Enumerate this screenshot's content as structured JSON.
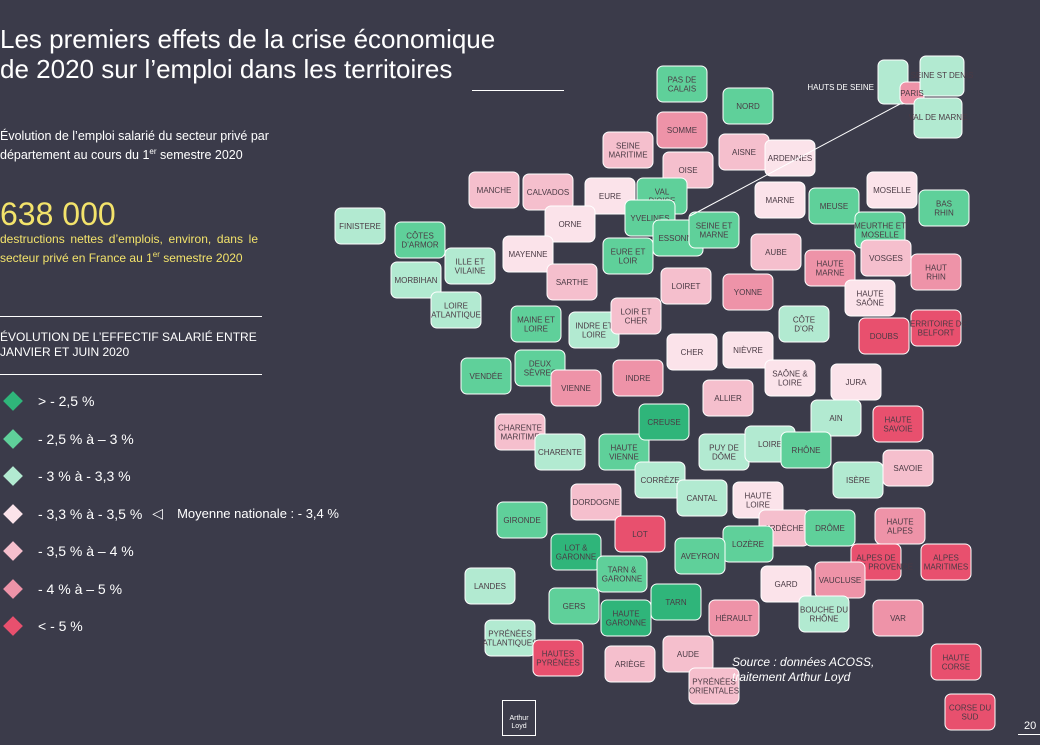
{
  "title": {
    "line1": "Les premiers effets de la crise économique",
    "line2": "de 2020 sur l’emploi dans les territoires"
  },
  "subtitle": {
    "text": "Évolution de l’emploi salarié du secteur privé par département au cours du 1",
    "sup": "er",
    "end": " semestre 2020"
  },
  "headline": {
    "value": "638 000",
    "desc": "destructions nettes d’emplois, environ, dans le secteur privé en France au 1",
    "sup": "er",
    "end": " semestre 2020"
  },
  "legend": {
    "title": "ÉVOLUTION DE L’EFFECTIF SALARIÉ ENTRE JANVIER ET JUIN 2020",
    "items": [
      {
        "label": "> - 2,5 %",
        "color": "#2fb57a"
      },
      {
        "label": "- 2,5 % à – 3 %",
        "color": "#5fd09a"
      },
      {
        "label": "- 3 % à - 3,3 %",
        "color": "#b2ead1"
      },
      {
        "label": "- 3,3 % à - 3,5 %",
        "color": "#fbe3ea"
      },
      {
        "label": "- 3,5 % à – 4 %",
        "color": "#f5bfcd"
      },
      {
        "label": "- 4 % à – 5 %",
        "color": "#ee93a8"
      },
      {
        "label": "< - 5 %",
        "color": "#e8506e"
      }
    ],
    "marker": "◁",
    "national_average": "Moyenne nationale : - 3,4 %"
  },
  "map_labels": [
    {
      "name": "PAS DE CALAIS",
      "cls": 1
    },
    {
      "name": "NORD",
      "cls": 1
    },
    {
      "name": "SOMME",
      "cls": 5
    },
    {
      "name": "SEINE MARITIME",
      "cls": 4
    },
    {
      "name": "AISNE",
      "cls": 4
    },
    {
      "name": "ARDENNES",
      "cls": 3
    },
    {
      "name": "OISE",
      "cls": 4
    },
    {
      "name": "MANCHE",
      "cls": 4
    },
    {
      "name": "CALVADOS",
      "cls": 4
    },
    {
      "name": "EURE",
      "cls": 3
    },
    {
      "name": "VAL D’OISE",
      "cls": 1
    },
    {
      "name": "YVELINES",
      "cls": 1
    },
    {
      "name": "ESSONNE",
      "cls": 1
    },
    {
      "name": "SEINE ET MARNE",
      "cls": 1
    },
    {
      "name": "MARNE",
      "cls": 3
    },
    {
      "name": "MEUSE",
      "cls": 1
    },
    {
      "name": "MOSELLE",
      "cls": 3
    },
    {
      "name": "BAS RHIN",
      "cls": 1
    },
    {
      "name": "MEURTHE ET MOSELLE",
      "cls": 1
    },
    {
      "name": "FINISTERE",
      "cls": 2
    },
    {
      "name": "CÔTES D’ARMOR",
      "cls": 1
    },
    {
      "name": "ORNE",
      "cls": 3
    },
    {
      "name": "EURE ET LOIR",
      "cls": 1
    },
    {
      "name": "AUBE",
      "cls": 4
    },
    {
      "name": "HAUTE MARNE",
      "cls": 5
    },
    {
      "name": "VOSGES",
      "cls": 4
    },
    {
      "name": "HAUT RHIN",
      "cls": 5
    },
    {
      "name": "MORBIHAN",
      "cls": 2
    },
    {
      "name": "ILLE ET VILAINE",
      "cls": 2
    },
    {
      "name": "MAYENNE",
      "cls": 3
    },
    {
      "name": "SARTHE",
      "cls": 4
    },
    {
      "name": "LOIRET",
      "cls": 4
    },
    {
      "name": "YONNE",
      "cls": 5
    },
    {
      "name": "HAUTE SAÔNE",
      "cls": 3
    },
    {
      "name": "TERRITOIRE DE BELFORT",
      "cls": 6
    },
    {
      "name": "LOIRE ATLANTIQUE",
      "cls": 2
    },
    {
      "name": "MAINE ET LOIRE",
      "cls": 1
    },
    {
      "name": "INDRE ET LOIRE",
      "cls": 2
    },
    {
      "name": "LOIR ET CHER",
      "cls": 4
    },
    {
      "name": "CÔTE D’OR",
      "cls": 2
    },
    {
      "name": "DOUBS",
      "cls": 6
    },
    {
      "name": "CHER",
      "cls": 3
    },
    {
      "name": "NIÈVRE",
      "cls": 3
    },
    {
      "name": "VENDÉE",
      "cls": 1
    },
    {
      "name": "DEUX SÈVRES",
      "cls": 1
    },
    {
      "name": "VIENNE",
      "cls": 5
    },
    {
      "name": "INDRE",
      "cls": 5
    },
    {
      "name": "SAÔNE & LOIRE",
      "cls": 3
    },
    {
      "name": "JURA",
      "cls": 3
    },
    {
      "name": "ALLIER",
      "cls": 4
    },
    {
      "name": "AIN",
      "cls": 2
    },
    {
      "name": "HAUTE SAVOIE",
      "cls": 6
    },
    {
      "name": "CHARENTE MARITIME",
      "cls": 4
    },
    {
      "name": "CHARENTE",
      "cls": 2
    },
    {
      "name": "HAUTE VIENNE",
      "cls": 1
    },
    {
      "name": "CREUSE",
      "cls": 0
    },
    {
      "name": "PUY DE DÔME",
      "cls": 2
    },
    {
      "name": "LOIRE",
      "cls": 2
    },
    {
      "name": "RHÔNE",
      "cls": 1
    },
    {
      "name": "SAVOIE",
      "cls": 4
    },
    {
      "name": "ISÈRE",
      "cls": 2
    },
    {
      "name": "CORRÈZE",
      "cls": 2
    },
    {
      "name": "CANTAL",
      "cls": 2
    },
    {
      "name": "HAUTE LOIRE",
      "cls": 3
    },
    {
      "name": "DORDOGNE",
      "cls": 4
    },
    {
      "name": "HAUTE ALPES",
      "cls": 5
    },
    {
      "name": "GIRONDE",
      "cls": 1
    },
    {
      "name": "LOT",
      "cls": 6
    },
    {
      "name": "ARDÈCHE",
      "cls": 4
    },
    {
      "name": "DRÔME",
      "cls": 1
    },
    {
      "name": "LOZÈRE",
      "cls": 1
    },
    {
      "name": "LOT & GARONNE",
      "cls": 0
    },
    {
      "name": "AVEYRON",
      "cls": 1
    },
    {
      "name": "ALPES DE HAUTE PROVENCE",
      "cls": 6
    },
    {
      "name": "ALPES MARITIMES",
      "cls": 6
    },
    {
      "name": "TARN & GARONNE",
      "cls": 1
    },
    {
      "name": "LANDES",
      "cls": 2
    },
    {
      "name": "GARD",
      "cls": 3
    },
    {
      "name": "VAUCLUSE",
      "cls": 5
    },
    {
      "name": "TARN",
      "cls": 0
    },
    {
      "name": "GERS",
      "cls": 1
    },
    {
      "name": "HAUTE GARONNE",
      "cls": 0
    },
    {
      "name": "HÉRAULT",
      "cls": 5
    },
    {
      "name": "BOUCHE DU RHÔNE",
      "cls": 2
    },
    {
      "name": "VAR",
      "cls": 5
    },
    {
      "name": "PYRÉNÉES ATLANTIQUES",
      "cls": 2
    },
    {
      "name": "HAUTES PYRÉNÉES",
      "cls": 6
    },
    {
      "name": "ARIÈGE",
      "cls": 4
    },
    {
      "name": "AUDE",
      "cls": 4
    },
    {
      "name": "PYRÉNÉES ORIENTALES",
      "cls": 4
    },
    {
      "name": "HAUTE CORSE",
      "cls": 6
    },
    {
      "name": "CORSE DU SUD",
      "cls": 6
    }
  ],
  "idf_inset": {
    "hauts_de_seine": "HAUTS DE SEINE",
    "paris": "PARIS",
    "seine_st_denis": "SEINE ST DENIS",
    "val_de_marne": "VAL DE MARNE"
  },
  "source": {
    "line1": "Source : données ACOSS,",
    "line2": "traitement Arthur Loyd"
  },
  "logo": {
    "line1": "Arthur",
    "line2": "Loyd"
  },
  "page_number": "20"
}
